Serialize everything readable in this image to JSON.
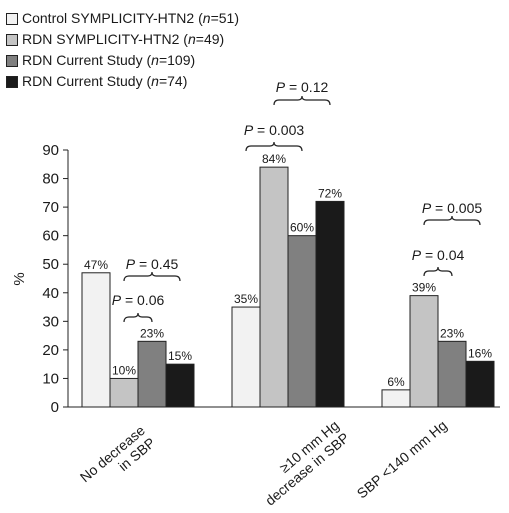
{
  "chart_data": {
    "type": "bar",
    "ylabel": "%",
    "ylim": [
      0,
      90
    ],
    "yticks": [
      "0",
      "10",
      "20",
      "30",
      "40",
      "50",
      "60",
      "70",
      "80",
      "90"
    ],
    "categories": [
      {
        "lines": [
          "No decrease",
          "in SBP"
        ]
      },
      {
        "lines": [
          "≥10 mm Hg",
          "decrease in SBP"
        ]
      },
      {
        "lines": [
          "SBP <140 mm Hg"
        ]
      }
    ],
    "series": [
      {
        "name": "Control SYMPLICITY-HTN2",
        "n_label": "n",
        "n_value": "=51",
        "color": "#f2f2f2",
        "values": [
          47,
          35,
          6
        ],
        "labels": [
          "47%",
          "35%",
          "6%"
        ]
      },
      {
        "name": "RDN SYMPLICITY-HTN2",
        "n_label": "n",
        "n_value": "=49",
        "color": "#c4c4c4",
        "values": [
          10,
          84,
          39
        ],
        "labels": [
          "10%",
          "84%",
          "39%"
        ]
      },
      {
        "name": "RDN Current Study",
        "n_label": "n",
        "n_value": "=109",
        "color": "#808080",
        "values": [
          23,
          60,
          23
        ],
        "labels": [
          "23%",
          "60%",
          "23%"
        ]
      },
      {
        "name": "RDN Current Study",
        "n_label": "n",
        "n_value": "=74",
        "color": "#1a1a1a",
        "values": [
          15,
          72,
          16
        ],
        "labels": [
          "15%",
          "72%",
          "16%"
        ]
      }
    ],
    "annotations": [
      {
        "group": 0,
        "from_series": 1,
        "to_series": 3,
        "p": "P",
        "value": "= 0.45"
      },
      {
        "group": 0,
        "from_series": 1,
        "to_series": 2,
        "p": "P",
        "value": "= 0.06"
      },
      {
        "group": 1,
        "from_series": 1,
        "to_series": 3,
        "p": "P",
        "value": "= 0.12"
      },
      {
        "group": 1,
        "from_series": 0,
        "to_series": 2,
        "p": "P",
        "value": "= 0.003"
      },
      {
        "group": 2,
        "from_series": 1,
        "to_series": 3,
        "p": "P",
        "value": "= 0.005"
      },
      {
        "group": 2,
        "from_series": 1,
        "to_series": 2,
        "p": "P",
        "value": "= 0.04"
      }
    ]
  }
}
